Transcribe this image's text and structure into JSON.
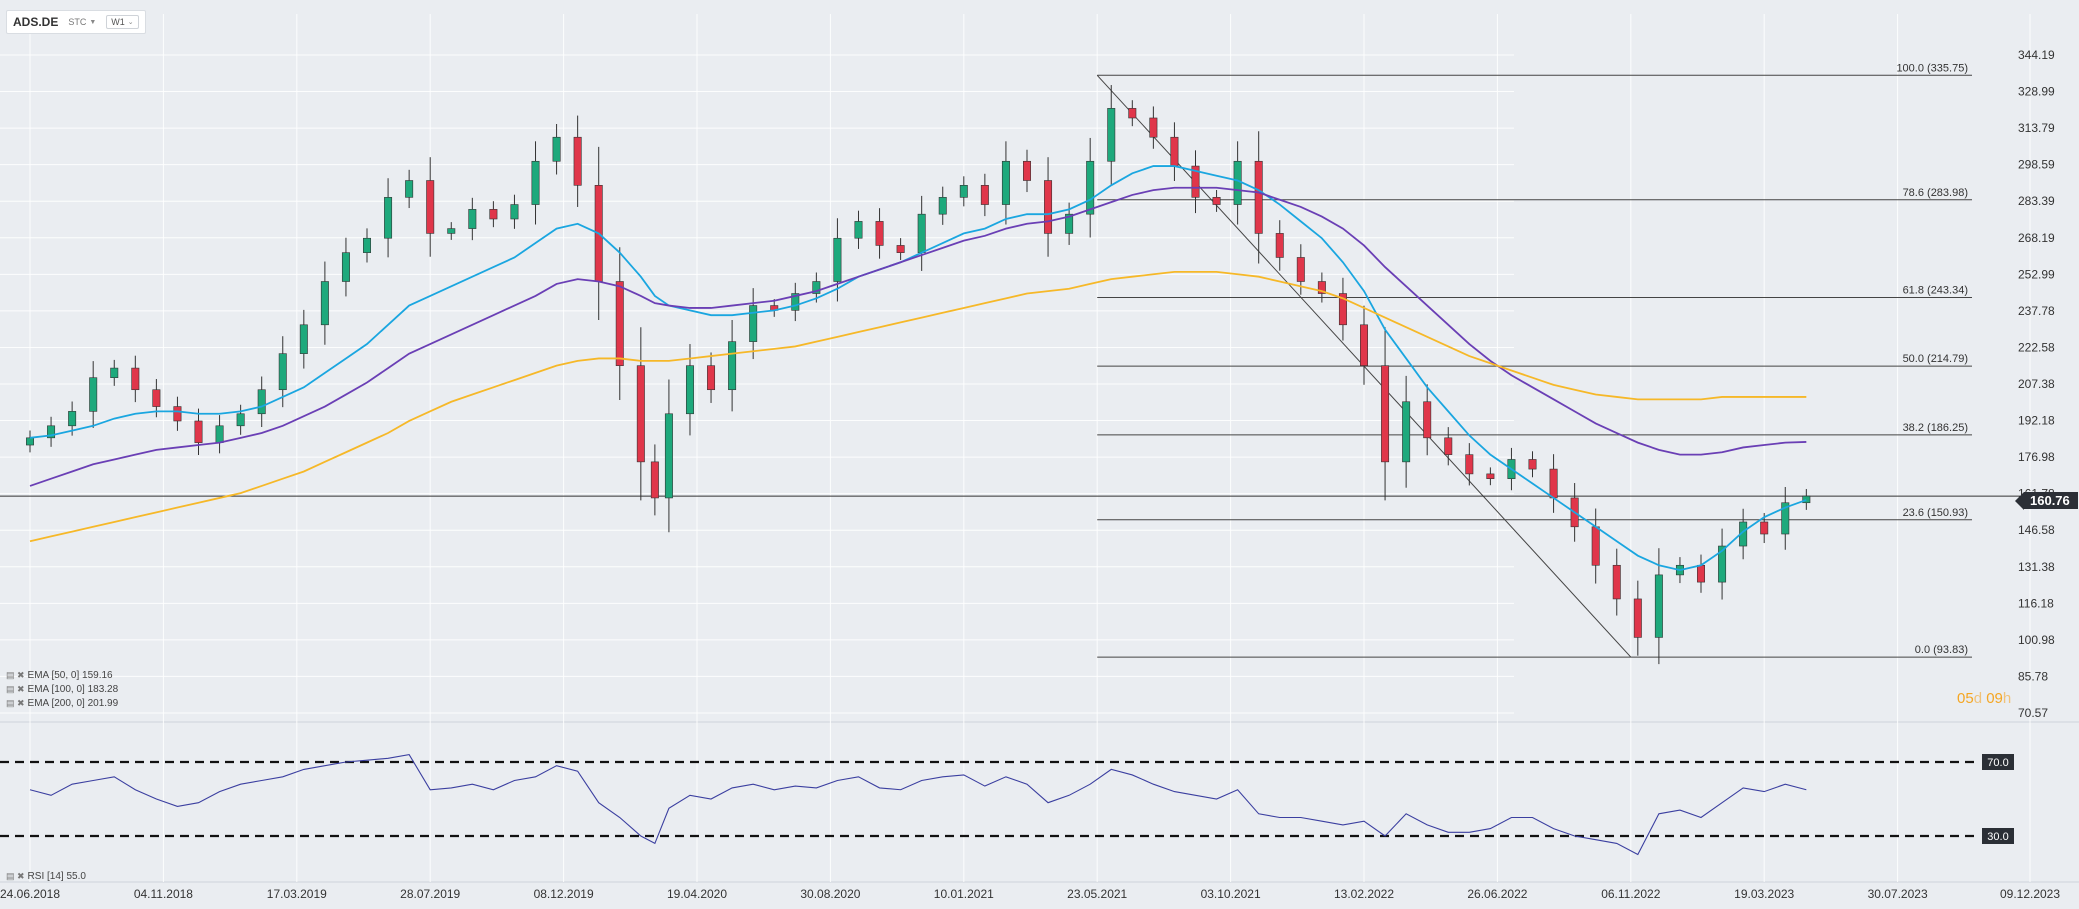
{
  "toolbar": {
    "symbol": "ADS.DE",
    "source": "STC",
    "timeframe": "W1"
  },
  "legend": [
    {
      "icons": "▤ ✖",
      "label": "EMA [50, 0] 159.16",
      "color": "#1aa6e0"
    },
    {
      "icons": "▤ ✖",
      "label": "EMA [100, 0] 183.28",
      "color": "#6a3fb5"
    },
    {
      "icons": "▤ ✖",
      "label": "EMA [200, 0] 201.99",
      "color": "#f6b828"
    }
  ],
  "rsi_legend": {
    "icons": "▤ ✖",
    "label": "RSI [14] 55.0"
  },
  "timer": {
    "days": "05",
    "d": "d",
    "hours": "09",
    "h": "h"
  },
  "current_price": "160.76",
  "colors": {
    "up": "#1ea97c",
    "down": "#e0364a",
    "ema50": "#1aa6e0",
    "ema100": "#6a3fb5",
    "ema200": "#f6b828",
    "rsi": "#3b3fa0",
    "timer": "#f5a623"
  },
  "chart_data": {
    "type": "candlestick",
    "interval": "weekly",
    "price_axis": {
      "ticks": [
        "344.19",
        "328.99",
        "313.79",
        "298.59",
        "283.39",
        "268.19",
        "252.99",
        "237.78",
        "222.58",
        "207.38",
        "192.18",
        "176.98",
        "161.78",
        "146.58",
        "131.38",
        "116.18",
        "100.98",
        "85.78",
        "70.57"
      ],
      "range": [
        70.57,
        344.19
      ]
    },
    "time_axis": [
      "24.06.2018",
      "04.11.2018",
      "17.03.2019",
      "28.07.2019",
      "08.12.2019",
      "19.04.2020",
      "30.08.2020",
      "10.01.2021",
      "23.05.2021",
      "03.10.2021",
      "13.02.2022",
      "26.06.2022",
      "06.11.2022",
      "19.03.2023",
      "30.07.2023",
      "09.12.2023"
    ],
    "fibonacci": {
      "from": {
        "date": "23.05.2021",
        "value": 335.75
      },
      "to": {
        "date": "06.11.2022",
        "value": 93.83
      },
      "levels": [
        {
          "label": "100.0 (335.75)",
          "value": 335.75
        },
        {
          "label": "78.6 (283.98)",
          "value": 283.98
        },
        {
          "label": "61.8 (243.34)",
          "value": 243.34
        },
        {
          "label": "50.0 (214.79)",
          "value": 214.79
        },
        {
          "label": "38.2 (186.25)",
          "value": 186.25
        },
        {
          "label": "23.6 (150.93)",
          "value": 150.93
        },
        {
          "label": "0.0 (93.83)",
          "value": 93.83
        }
      ]
    },
    "current_price": 160.76,
    "price_series": {
      "dates": [
        "24.06.2018",
        "15.07.2018",
        "05.08.2018",
        "26.08.2018",
        "16.09.2018",
        "07.10.2018",
        "28.10.2018",
        "18.11.2018",
        "09.12.2018",
        "30.12.2018",
        "20.01.2019",
        "10.02.2019",
        "03.03.2019",
        "24.03.2019",
        "14.04.2019",
        "05.05.2019",
        "26.05.2019",
        "16.06.2019",
        "07.07.2019",
        "28.07.2019",
        "18.08.2019",
        "08.09.2019",
        "29.09.2019",
        "20.10.2019",
        "10.11.2019",
        "01.12.2019",
        "22.12.2019",
        "12.01.2020",
        "02.02.2020",
        "23.02.2020",
        "08.03.2020",
        "22.03.2020",
        "12.04.2020",
        "03.05.2020",
        "24.05.2020",
        "14.06.2020",
        "05.07.2020",
        "26.07.2020",
        "16.08.2020",
        "06.09.2020",
        "27.09.2020",
        "18.10.2020",
        "08.11.2020",
        "29.11.2020",
        "20.12.2020",
        "10.01.2021",
        "31.01.2021",
        "21.02.2021",
        "14.03.2021",
        "04.04.2021",
        "25.04.2021",
        "16.05.2021",
        "06.06.2021",
        "27.06.2021",
        "18.07.2021",
        "08.08.2021",
        "29.08.2021",
        "19.09.2021",
        "10.10.2021",
        "31.10.2021",
        "21.11.2021",
        "12.12.2021",
        "02.01.2022",
        "23.01.2022",
        "13.02.2022",
        "06.03.2022",
        "27.03.2022",
        "17.04.2022",
        "08.05.2022",
        "29.05.2022",
        "19.06.2022",
        "10.07.2022",
        "31.07.2022",
        "21.08.2022",
        "11.09.2022",
        "02.10.2022",
        "23.10.2022",
        "13.11.2022",
        "04.12.2022",
        "25.12.2022",
        "15.01.2023",
        "05.02.2023",
        "26.02.2023",
        "19.03.2023",
        "09.04.2023",
        "30.04.2023"
      ],
      "close": [
        185,
        190,
        196,
        210,
        214,
        205,
        198,
        192,
        183,
        190,
        195,
        205,
        220,
        232,
        250,
        262,
        268,
        285,
        292,
        270,
        272,
        280,
        276,
        282,
        300,
        310,
        290,
        250,
        215,
        175,
        160,
        195,
        215,
        205,
        225,
        240,
        238,
        245,
        250,
        268,
        275,
        265,
        262,
        278,
        285,
        290,
        282,
        300,
        292,
        270,
        278,
        300,
        322,
        318,
        310,
        298,
        285,
        282,
        300,
        270,
        260,
        250,
        245,
        232,
        215,
        175,
        200,
        185,
        178,
        170,
        168,
        176,
        172,
        160,
        148,
        132,
        118,
        102,
        128,
        132,
        125,
        140,
        150,
        145,
        158,
        160.76
      ]
    },
    "ema_series": [
      {
        "name": "EMA [50, 0]",
        "values": [
          185,
          186,
          188,
          190,
          193,
          195,
          196,
          196,
          195,
          195,
          196,
          198,
          202,
          206,
          212,
          218,
          224,
          232,
          240,
          244,
          248,
          252,
          256,
          260,
          266,
          272,
          274,
          270,
          262,
          252,
          244,
          240,
          238,
          236,
          236,
          237,
          238,
          240,
          243,
          247,
          252,
          255,
          258,
          262,
          266,
          270,
          272,
          276,
          278,
          278,
          280,
          284,
          290,
          295,
          298,
          298,
          296,
          294,
          292,
          288,
          282,
          275,
          268,
          258,
          246,
          230,
          218,
          206,
          196,
          186,
          178,
          172,
          166,
          160,
          154,
          148,
          142,
          136,
          132,
          130,
          132,
          138,
          146,
          152,
          156,
          159.16
        ]
      },
      {
        "name": "EMA [100, 0]",
        "values": [
          165,
          168,
          171,
          174,
          176,
          178,
          180,
          181,
          182,
          183,
          185,
          187,
          190,
          194,
          198,
          203,
          208,
          214,
          220,
          224,
          228,
          232,
          236,
          240,
          244,
          249,
          251,
          250,
          248,
          244,
          241,
          240,
          239,
          239,
          240,
          241,
          242,
          244,
          246,
          249,
          252,
          255,
          258,
          261,
          264,
          267,
          269,
          272,
          274,
          275,
          277,
          280,
          283,
          286,
          288,
          289,
          289,
          289,
          288,
          287,
          284,
          281,
          277,
          272,
          265,
          256,
          248,
          240,
          232,
          224,
          217,
          211,
          206,
          201,
          196,
          191,
          187,
          183,
          180,
          178,
          178,
          179,
          181,
          182,
          183,
          183.28
        ]
      },
      {
        "name": "EMA [200, 0]",
        "values": [
          142,
          144,
          146,
          148,
          150,
          152,
          154,
          156,
          158,
          160,
          162,
          165,
          168,
          171,
          175,
          179,
          183,
          187,
          192,
          196,
          200,
          203,
          206,
          209,
          212,
          215,
          217,
          218,
          218,
          217,
          217,
          217,
          218,
          219,
          220,
          221,
          222,
          223,
          225,
          227,
          229,
          231,
          233,
          235,
          237,
          239,
          241,
          243,
          245,
          246,
          247,
          249,
          251,
          252,
          253,
          254,
          254,
          254,
          253,
          252,
          250,
          248,
          246,
          243,
          239,
          235,
          231,
          227,
          223,
          219,
          216,
          213,
          210,
          207,
          205,
          203,
          202,
          201,
          201,
          201,
          201,
          202,
          202,
          202,
          202,
          201.99
        ]
      }
    ],
    "rsi": {
      "name": "RSI [14]",
      "levels": [
        {
          "value": 70,
          "label": "70.0"
        },
        {
          "value": 30,
          "label": "30.0"
        }
      ],
      "values": [
        55,
        52,
        58,
        60,
        62,
        55,
        50,
        46,
        48,
        54,
        58,
        60,
        62,
        66,
        68,
        70,
        71,
        72,
        74,
        55,
        56,
        58,
        55,
        60,
        62,
        68,
        65,
        48,
        40,
        30,
        26,
        45,
        52,
        50,
        56,
        58,
        55,
        57,
        56,
        60,
        62,
        56,
        55,
        60,
        62,
        63,
        57,
        62,
        58,
        48,
        52,
        58,
        66,
        63,
        58,
        54,
        52,
        50,
        55,
        42,
        40,
        40,
        38,
        36,
        38,
        30,
        42,
        36,
        32,
        32,
        34,
        40,
        40,
        34,
        30,
        28,
        26,
        20,
        42,
        44,
        40,
        48,
        56,
        54,
        58,
        55
      ]
    }
  }
}
